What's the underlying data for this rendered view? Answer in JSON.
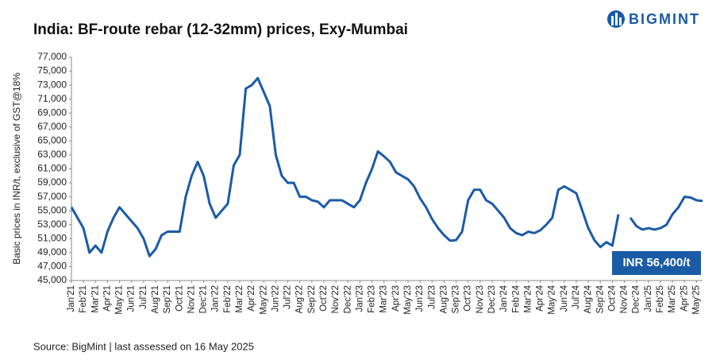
{
  "chart_data": {
    "type": "line",
    "title": "India: BF-route rebar (12-32mm) prices, Exy-Mumbai",
    "y_label": "Basic prices in INR/t, exclusive of GST@18%",
    "source": "Source: BigMint  | last assessed on 16 May 2025",
    "annotation": "INR 56,400/t",
    "brand": "BIGMINT",
    "categories": [
      "Jan'21",
      null,
      "Feb'21",
      null,
      "Mar'21",
      null,
      "Apr'21",
      null,
      "May'21",
      null,
      "Jun'21",
      null,
      "Jul'21",
      null,
      "Aug'21",
      null,
      "Sep'21",
      null,
      "Oct'21",
      null,
      "Nov'21",
      null,
      "Dec'21",
      null,
      "Jan'22",
      null,
      "Feb'22",
      null,
      "Mar'22",
      null,
      "Apr'22",
      null,
      "May'22",
      null,
      "Jun'22",
      null,
      "Jul'22",
      null,
      "Aug'22",
      null,
      "Sep'22",
      null,
      "Oct'22",
      null,
      "Nov'22",
      null,
      "Dec'22",
      null,
      "Jan'23",
      null,
      "Feb'23",
      null,
      "Mar'23",
      null,
      "Apr'23",
      null,
      "May'23",
      null,
      "Jun'23",
      null,
      "Jul'23",
      null,
      "Aug'23",
      null,
      "Sep'23",
      null,
      "Oct'23",
      null,
      "Nov'23",
      null,
      "Dec'23",
      null,
      "Jan'24",
      null,
      "Feb'24",
      null,
      "Mar'24",
      null,
      "Apr'24",
      null,
      "May'24",
      null,
      "Jun'24",
      null,
      "Jul'24",
      null,
      "Aug'24",
      null,
      "Sep'24",
      null,
      "Oct'24",
      null,
      "Nov'24",
      null,
      "Dec'24",
      null,
      "Jan'25",
      null,
      "Feb'25",
      null,
      "Mar'25",
      null,
      "Apr'25",
      null,
      "May'25",
      null
    ],
    "series": [
      {
        "name": "BF-route rebar",
        "color": "#1a5ba6",
        "values": [
          55500,
          54000,
          52500,
          49000,
          50000,
          49000,
          52000,
          54000,
          55500,
          54500,
          53500,
          52500,
          51000,
          48500,
          49500,
          51500,
          52000,
          52000,
          52000,
          57000,
          60000,
          62000,
          60000,
          56000,
          54000,
          55000,
          56000,
          61500,
          63000,
          72500,
          73000,
          74000,
          72000,
          70000,
          63000,
          60000,
          59000,
          59000,
          57000,
          57000,
          56500,
          56300,
          55500,
          56500,
          56500,
          56500,
          56000,
          55500,
          56500,
          59000,
          61000,
          63500,
          62800,
          62000,
          60500,
          60000,
          59500,
          58500,
          56800,
          55500,
          53800,
          52500,
          51500,
          50700,
          50800,
          52000,
          56500,
          58000,
          58000,
          56500,
          56000,
          55000,
          54000,
          52500,
          51800,
          51500,
          52000,
          51800,
          52200,
          53000,
          54000,
          58000,
          58500,
          58000,
          57500,
          55000,
          52500,
          50800,
          49800,
          50500,
          50000,
          54500,
          null,
          54000,
          52800,
          52300,
          52500,
          52300,
          52500,
          53000,
          54500,
          55500,
          57000,
          56900,
          56500,
          56400
        ]
      }
    ],
    "ylim": [
      45000,
      77000
    ],
    "yticks": [
      {
        "value": 45000,
        "label": "45,000"
      },
      {
        "value": 47000,
        "label": "47,000"
      },
      {
        "value": 49000,
        "label": "49,000"
      },
      {
        "value": 51000,
        "label": "51,000"
      },
      {
        "value": 53000,
        "label": "53,000"
      },
      {
        "value": 55000,
        "label": "55,000"
      },
      {
        "value": 57000,
        "label": "57,000"
      },
      {
        "value": 59000,
        "label": "59,000"
      },
      {
        "value": 61000,
        "label": "61,000"
      },
      {
        "value": 63000,
        "label": "63,000"
      },
      {
        "value": 65000,
        "label": "65,000"
      },
      {
        "value": 67000,
        "label": "67,000"
      },
      {
        "value": 69000,
        "label": "69,000"
      },
      {
        "value": 71000,
        "label": "71,000"
      },
      {
        "value": 73000,
        "label": "73,000"
      },
      {
        "value": 75000,
        "label": "75,000"
      },
      {
        "value": 77000,
        "label": "77,000"
      }
    ],
    "grid": false
  }
}
